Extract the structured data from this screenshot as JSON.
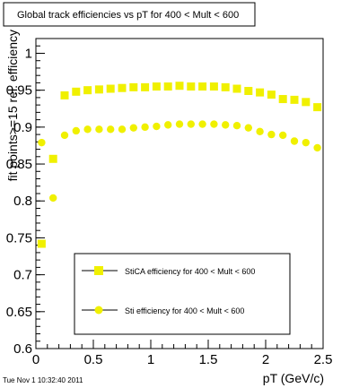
{
  "chart_data": {
    "type": "scatter",
    "title": "Global track efficiencies vs pT for 400 < Mult < 600",
    "xlabel": "pT (GeV/c)",
    "ylabel": "fit points>=15 rel. efficiency",
    "xlim": [
      0,
      2.5
    ],
    "ylim": [
      0.6,
      1.02
    ],
    "x_ticks": [
      0,
      0.5,
      1,
      1.5,
      2,
      2.5
    ],
    "x_tick_labels": [
      "0",
      "0.5",
      "1",
      "1.5",
      "2",
      "2.5"
    ],
    "y_ticks": [
      0.6,
      0.65,
      0.7,
      0.75,
      0.8,
      0.85,
      0.9,
      0.95,
      1
    ],
    "y_tick_labels": [
      "0.6",
      "0.65",
      "0.7",
      "0.75",
      "0.8",
      "0.85",
      "0.9",
      "0.95",
      "1"
    ],
    "grid": false,
    "legend_position": "bottom",
    "series": [
      {
        "name": "StiCA efficiency  for 400 < Mult < 600",
        "marker": "square",
        "color": "#f0f000",
        "x": [
          0.05,
          0.15,
          0.25,
          0.35,
          0.45,
          0.55,
          0.65,
          0.75,
          0.85,
          0.95,
          1.05,
          1.15,
          1.25,
          1.35,
          1.45,
          1.55,
          1.65,
          1.75,
          1.85,
          1.95,
          2.05,
          2.15,
          2.25,
          2.35,
          2.45
        ],
        "y": [
          0.742,
          0.857,
          0.943,
          0.948,
          0.95,
          0.951,
          0.952,
          0.953,
          0.954,
          0.954,
          0.955,
          0.955,
          0.956,
          0.955,
          0.955,
          0.955,
          0.954,
          0.952,
          0.949,
          0.947,
          0.944,
          0.938,
          0.937,
          0.934,
          0.927
        ]
      },
      {
        "name": "Sti efficiency  for 400 < Mult < 600",
        "marker": "circle",
        "color": "#f0f000",
        "x": [
          0.05,
          0.15,
          0.25,
          0.35,
          0.45,
          0.55,
          0.65,
          0.75,
          0.85,
          0.95,
          1.05,
          1.15,
          1.25,
          1.35,
          1.45,
          1.55,
          1.65,
          1.75,
          1.85,
          1.95,
          2.05,
          2.15,
          2.25,
          2.35,
          2.45
        ],
        "y": [
          0.879,
          0.804,
          0.889,
          0.895,
          0.897,
          0.897,
          0.897,
          0.897,
          0.899,
          0.9,
          0.901,
          0.903,
          0.904,
          0.904,
          0.904,
          0.904,
          0.903,
          0.902,
          0.899,
          0.894,
          0.89,
          0.889,
          0.881,
          0.879,
          0.872
        ]
      }
    ]
  },
  "timestamp": "Tue Nov  1 10:32:40 2011"
}
